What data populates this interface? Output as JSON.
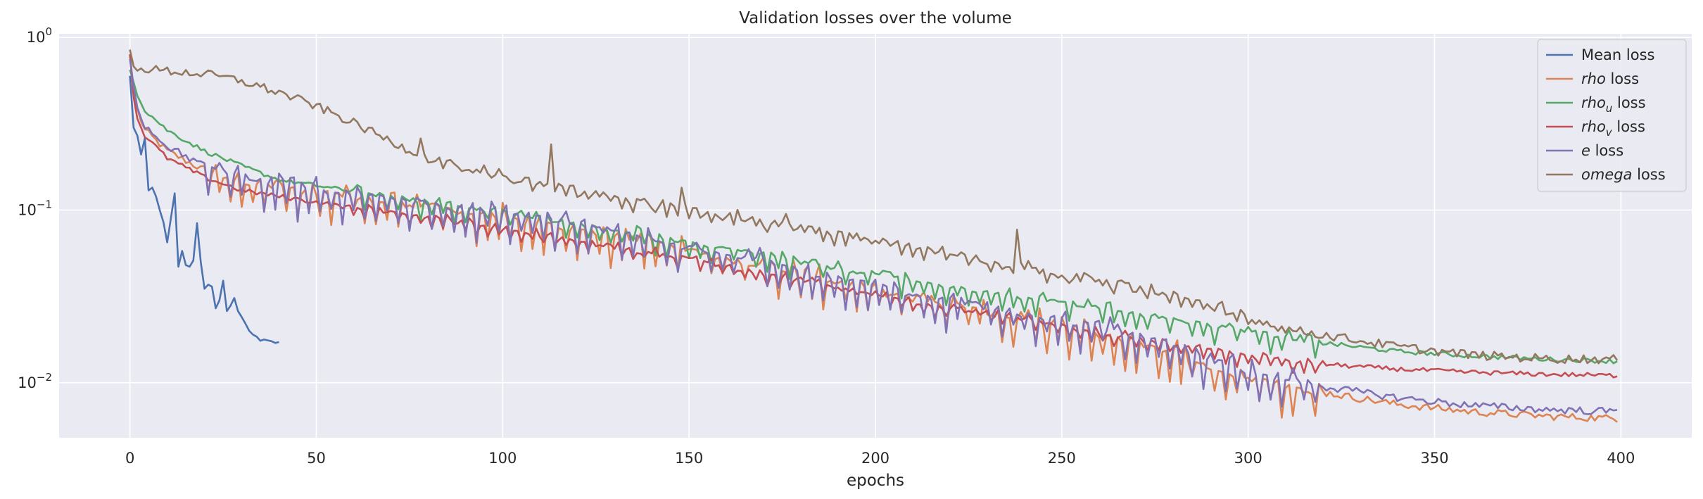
{
  "chart_data": {
    "type": "line",
    "title": "Validation losses over the volume",
    "xlabel": "epochs",
    "ylabel": "",
    "yscale": "log",
    "xlim": [
      -19,
      419
    ],
    "ylim": [
      0.0048,
      1.05
    ],
    "xticks": [
      0,
      50,
      100,
      150,
      200,
      250,
      300,
      350,
      400
    ],
    "yticks": [
      {
        "value": 0.01,
        "base": "10",
        "exp": "−2"
      },
      {
        "value": 0.1,
        "base": "10",
        "exp": "−1"
      },
      {
        "value": 1,
        "base": "10",
        "exp": "0"
      }
    ],
    "grid": true,
    "legend_position": "top-right",
    "series": [
      {
        "name": "Mean loss",
        "legend": {
          "italic": "",
          "sub": "",
          "suffix": "Mean loss"
        },
        "color": "#4c72b0",
        "x": [
          0,
          1,
          2,
          3,
          4,
          5,
          6,
          7,
          8,
          9,
          10,
          11,
          12,
          13,
          14,
          15,
          16,
          17,
          18,
          19,
          20,
          21,
          22,
          23,
          24,
          25,
          26,
          27,
          28,
          29,
          30,
          31,
          32,
          33,
          34,
          35,
          36,
          37,
          38,
          39,
          40
        ],
        "y": [
          0.6,
          0.3,
          0.27,
          0.21,
          0.26,
          0.13,
          0.135,
          0.12,
          0.1,
          0.085,
          0.065,
          0.09,
          0.125,
          0.047,
          0.058,
          0.048,
          0.047,
          0.051,
          0.084,
          0.05,
          0.035,
          0.037,
          0.036,
          0.027,
          0.03,
          0.039,
          0.026,
          0.028,
          0.031,
          0.026,
          0.024,
          0.022,
          0.02,
          0.019,
          0.0185,
          0.0175,
          0.0178,
          0.0176,
          0.0174,
          0.017,
          0.0172
        ]
      },
      {
        "name": "rho loss",
        "legend": {
          "italic": "rho",
          "sub": "",
          "suffix": " loss"
        },
        "color": "#dd8452",
        "anchors": [
          [
            0,
            0.8
          ],
          [
            1,
            0.5
          ],
          [
            2,
            0.38
          ],
          [
            4,
            0.29
          ],
          [
            10,
            0.22
          ],
          [
            20,
            0.17
          ],
          [
            30,
            0.148
          ],
          [
            40,
            0.135
          ],
          [
            60,
            0.118
          ],
          [
            80,
            0.105
          ],
          [
            100,
            0.09
          ],
          [
            120,
            0.078
          ],
          [
            140,
            0.065
          ],
          [
            160,
            0.052
          ],
          [
            180,
            0.042
          ],
          [
            200,
            0.034
          ],
          [
            220,
            0.028
          ],
          [
            240,
            0.023
          ],
          [
            260,
            0.019
          ],
          [
            280,
            0.015
          ],
          [
            290,
            0.012
          ],
          [
            300,
            0.0105
          ],
          [
            320,
            0.0088
          ],
          [
            340,
            0.0075
          ],
          [
            360,
            0.0068
          ],
          [
            380,
            0.0064
          ],
          [
            400,
            0.0062
          ]
        ],
        "noise": 0.05,
        "dip_amp": 0.35,
        "dip_period": 3,
        "dip_start": 20,
        "dip_end": 320
      },
      {
        "name": "rho_u loss",
        "legend": {
          "italic": "rho",
          "sub": "u",
          "suffix": " loss"
        },
        "color": "#55a868",
        "anchors": [
          [
            0,
            0.65
          ],
          [
            1,
            0.55
          ],
          [
            2,
            0.47
          ],
          [
            4,
            0.38
          ],
          [
            10,
            0.29
          ],
          [
            20,
            0.22
          ],
          [
            30,
            0.18
          ],
          [
            40,
            0.15
          ],
          [
            60,
            0.128
          ],
          [
            80,
            0.112
          ],
          [
            100,
            0.096
          ],
          [
            120,
            0.083
          ],
          [
            140,
            0.071
          ],
          [
            160,
            0.06
          ],
          [
            180,
            0.05
          ],
          [
            200,
            0.042
          ],
          [
            220,
            0.036
          ],
          [
            240,
            0.031
          ],
          [
            260,
            0.027
          ],
          [
            280,
            0.023
          ],
          [
            300,
            0.02
          ],
          [
            320,
            0.017
          ],
          [
            340,
            0.0152
          ],
          [
            360,
            0.0143
          ],
          [
            380,
            0.0137
          ],
          [
            400,
            0.0133
          ]
        ],
        "noise": 0.03,
        "dip_amp": 0.22,
        "dip_period": 3,
        "dip_start": 60,
        "dip_end": 320
      },
      {
        "name": "rho_v loss",
        "legend": {
          "italic": "rho",
          "sub": "v",
          "suffix": " loss"
        },
        "color": "#c44e52",
        "anchors": [
          [
            0,
            0.8
          ],
          [
            1,
            0.45
          ],
          [
            2,
            0.34
          ],
          [
            4,
            0.27
          ],
          [
            10,
            0.2
          ],
          [
            20,
            0.155
          ],
          [
            30,
            0.13
          ],
          [
            40,
            0.12
          ],
          [
            60,
            0.103
          ],
          [
            80,
            0.092
          ],
          [
            100,
            0.078
          ],
          [
            120,
            0.066
          ],
          [
            140,
            0.056
          ],
          [
            160,
            0.047
          ],
          [
            180,
            0.039
          ],
          [
            200,
            0.032
          ],
          [
            220,
            0.027
          ],
          [
            240,
            0.023
          ],
          [
            260,
            0.0195
          ],
          [
            280,
            0.0165
          ],
          [
            300,
            0.0142
          ],
          [
            320,
            0.0128
          ],
          [
            340,
            0.012
          ],
          [
            360,
            0.0115
          ],
          [
            380,
            0.0112
          ],
          [
            400,
            0.011
          ]
        ],
        "noise": 0.03,
        "dip_amp": 0.14,
        "dip_period": 3,
        "dip_start": 60,
        "dip_end": 320
      },
      {
        "name": "e loss",
        "legend": {
          "italic": "e",
          "sub": "",
          "suffix": " loss"
        },
        "color": "#8172b3",
        "anchors": [
          [
            0,
            0.75
          ],
          [
            1,
            0.52
          ],
          [
            2,
            0.4
          ],
          [
            4,
            0.31
          ],
          [
            10,
            0.235
          ],
          [
            20,
            0.18
          ],
          [
            30,
            0.155
          ],
          [
            40,
            0.14
          ],
          [
            60,
            0.123
          ],
          [
            80,
            0.11
          ],
          [
            100,
            0.095
          ],
          [
            120,
            0.082
          ],
          [
            140,
            0.068
          ],
          [
            160,
            0.055
          ],
          [
            180,
            0.045
          ],
          [
            200,
            0.036
          ],
          [
            220,
            0.03
          ],
          [
            240,
            0.025
          ],
          [
            260,
            0.021
          ],
          [
            280,
            0.017
          ],
          [
            290,
            0.0135
          ],
          [
            300,
            0.0115
          ],
          [
            320,
            0.0095
          ],
          [
            340,
            0.0082
          ],
          [
            360,
            0.0074
          ],
          [
            380,
            0.007
          ],
          [
            400,
            0.0068
          ]
        ],
        "noise": 0.05,
        "dip_amp": 0.35,
        "dip_period": 3,
        "dip_start": 20,
        "dip_end": 320
      },
      {
        "name": "omega loss",
        "legend": {
          "italic": "omega",
          "sub": "",
          "suffix": " loss"
        },
        "color": "#937860",
        "anchors": [
          [
            0,
            0.85
          ],
          [
            1,
            0.68
          ],
          [
            5,
            0.655
          ],
          [
            10,
            0.64
          ],
          [
            20,
            0.615
          ],
          [
            30,
            0.56
          ],
          [
            40,
            0.48
          ],
          [
            50,
            0.4
          ],
          [
            60,
            0.32
          ],
          [
            70,
            0.25
          ],
          [
            80,
            0.2
          ],
          [
            90,
            0.17
          ],
          [
            100,
            0.155
          ],
          [
            120,
            0.13
          ],
          [
            140,
            0.108
          ],
          [
            160,
            0.092
          ],
          [
            180,
            0.078
          ],
          [
            200,
            0.066
          ],
          [
            220,
            0.056
          ],
          [
            240,
            0.047
          ],
          [
            260,
            0.039
          ],
          [
            280,
            0.032
          ],
          [
            300,
            0.024
          ],
          [
            310,
            0.0205
          ],
          [
            320,
            0.019
          ],
          [
            340,
            0.0162
          ],
          [
            360,
            0.0145
          ],
          [
            380,
            0.0138
          ],
          [
            400,
            0.0137
          ]
        ],
        "noise": 0.06,
        "dip_amp": 0.12,
        "dip_period": 3,
        "dip_start": 80,
        "dip_end": 300,
        "spikes": [
          [
            113,
            0.24
          ],
          [
            78,
            0.26
          ],
          [
            238,
            0.077
          ],
          [
            148,
            0.135
          ],
          [
            176,
            0.095
          ]
        ]
      }
    ]
  }
}
